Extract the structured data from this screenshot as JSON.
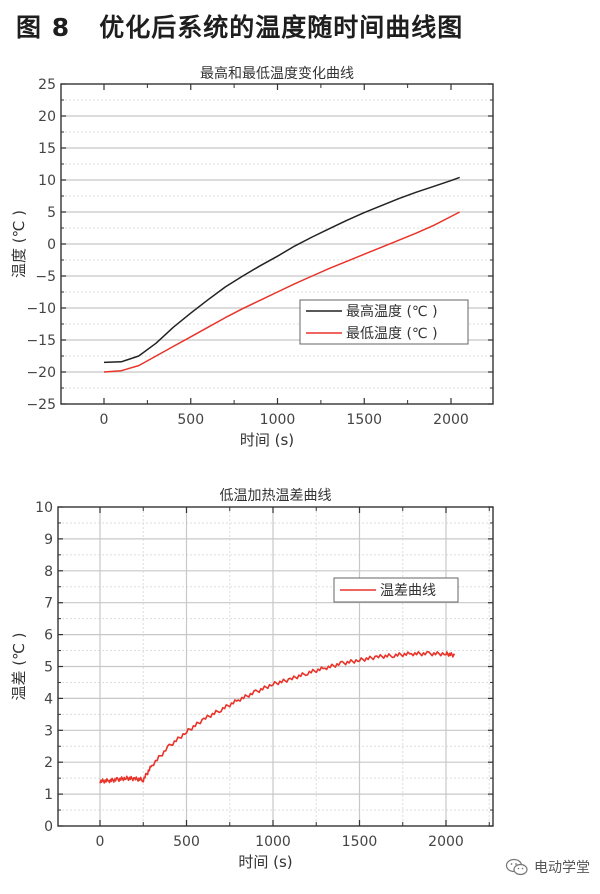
{
  "figure": {
    "title": "图 8   优化后系统的温度随时间曲线图",
    "watermark": "电动学堂",
    "watermark_icon": "wechat-icon"
  },
  "colors": {
    "max_series": "#222222",
    "min_series": "#e8342a",
    "diff_series": "#e8342a",
    "grid_major": "#c8c8c8",
    "grid_minor": "#dddddd",
    "axis": "#333333"
  },
  "chart_data": [
    {
      "type": "line",
      "title": "最高和最低温度变化曲线",
      "xlabel": "时间 (s)",
      "ylabel": "温度 (℃ )",
      "xlim": [
        -250,
        2250
      ],
      "ylim": [
        -25,
        25
      ],
      "xticks": [
        0,
        500,
        1000,
        1500,
        2000
      ],
      "xtick_labels": [
        "0",
        "500",
        "1000",
        "1500",
        "2000"
      ],
      "yticks": [
        -25,
        -20,
        -15,
        -10,
        -5,
        0,
        5,
        10,
        15,
        20,
        25
      ],
      "ytick_labels": [
        "−25",
        "−20",
        "−15",
        "−10",
        "−5",
        "0",
        "5",
        "10",
        "15",
        "20",
        "25"
      ],
      "grid": "horizontal",
      "legend_position": "center-right",
      "series": [
        {
          "name": "最高温度 (℃ )",
          "color": "#222222",
          "x": [
            0,
            100,
            200,
            300,
            400,
            500,
            600,
            700,
            800,
            900,
            1000,
            1100,
            1200,
            1300,
            1400,
            1500,
            1600,
            1700,
            1800,
            1900,
            2000,
            2050
          ],
          "values": [
            -18.5,
            -18.4,
            -17.5,
            -15.5,
            -13.0,
            -10.8,
            -8.7,
            -6.7,
            -5.0,
            -3.4,
            -1.9,
            -0.3,
            1.1,
            2.4,
            3.7,
            4.9,
            6.0,
            7.1,
            8.1,
            9.0,
            9.9,
            10.4
          ]
        },
        {
          "name": "最低温度 (℃ )",
          "color": "#e8342a",
          "x": [
            0,
            100,
            200,
            300,
            400,
            500,
            600,
            700,
            800,
            900,
            1000,
            1100,
            1200,
            1300,
            1400,
            1500,
            1600,
            1700,
            1800,
            1900,
            2000,
            2050
          ],
          "values": [
            -20.0,
            -19.8,
            -19.0,
            -17.5,
            -16.0,
            -14.5,
            -13.0,
            -11.5,
            -10.1,
            -8.8,
            -7.5,
            -6.2,
            -5.0,
            -3.8,
            -2.7,
            -1.6,
            -0.5,
            0.6,
            1.7,
            2.9,
            4.3,
            5.0
          ]
        }
      ]
    },
    {
      "type": "line",
      "title": "低温加热温差曲线",
      "xlabel": "时间 (s)",
      "ylabel": "温差 (℃ )",
      "xlim": [
        -250,
        2250
      ],
      "ylim": [
        0,
        10
      ],
      "xticks": [
        0,
        500,
        1000,
        1500,
        2000
      ],
      "xtick_labels": [
        "0",
        "500",
        "1000",
        "1500",
        "2000"
      ],
      "yticks": [
        0,
        1,
        2,
        3,
        4,
        5,
        6,
        7,
        8,
        9,
        10
      ],
      "ytick_labels": [
        "0",
        "1",
        "2",
        "3",
        "4",
        "5",
        "6",
        "7",
        "8",
        "9",
        "10"
      ],
      "grid": "both",
      "legend_position": "upper-right",
      "series": [
        {
          "name": "温差曲线",
          "color": "#e8342a",
          "x": [
            0,
            50,
            100,
            150,
            200,
            250,
            300,
            400,
            500,
            600,
            700,
            800,
            900,
            1000,
            1100,
            1200,
            1300,
            1400,
            1500,
            1600,
            1700,
            1800,
            1900,
            2000,
            2050
          ],
          "values": [
            1.4,
            1.42,
            1.45,
            1.5,
            1.48,
            1.45,
            1.9,
            2.5,
            2.95,
            3.35,
            3.65,
            3.95,
            4.2,
            4.45,
            4.6,
            4.8,
            4.95,
            5.1,
            5.2,
            5.3,
            5.35,
            5.4,
            5.4,
            5.4,
            5.35
          ]
        }
      ]
    }
  ]
}
